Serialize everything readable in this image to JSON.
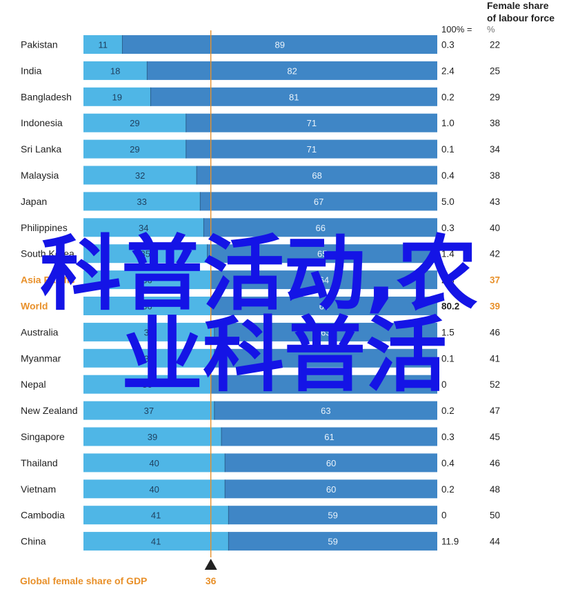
{
  "header": {
    "title_line1": "Female share",
    "title_line2": "of labour force",
    "hundred_label": "100% =",
    "pct_label": "%"
  },
  "footer": {
    "label": "Global female share of GDP",
    "value": "36"
  },
  "watermark": {
    "line1": "科普活动,农",
    "line2": "业科普活"
  },
  "colors": {
    "female_bar": "#4fb6e6",
    "male_bar": "#3f86c6",
    "highlight": "#e8902a",
    "marker_line": "#e8902a",
    "watermark": "#1414e6"
  },
  "chart_data": {
    "type": "bar",
    "orientation": "horizontal-stacked-100",
    "reference_line": 36,
    "categories": [
      "Pakistan",
      "India",
      "Bangladesh",
      "Indonesia",
      "Sri Lanka",
      "Malaysia",
      "Japan",
      "Philippines",
      "South Korea",
      "Asia Pacific",
      "World",
      "Australia",
      "Myanmar",
      "Nepal",
      "New Zealand",
      "Singapore",
      "Thailand",
      "Vietnam",
      "Cambodia",
      "China"
    ],
    "labels": [
      "Pakistan",
      "India",
      "Bangladesh",
      "Indonesia",
      "Sri Lanka",
      "Malaysia",
      "Japan",
      "Philippines",
      "South Korea",
      "Asia Pacific",
      "World",
      "Australia",
      "Myanmar",
      "Nepal",
      "New Zealand",
      "Singapore",
      "Thailand",
      "Vietnam",
      "Cambodia",
      "China"
    ],
    "highlight_rows": [
      "Asia Pacific",
      "World"
    ],
    "series": [
      {
        "values": [
          11,
          18,
          19,
          29,
          29,
          32,
          33,
          34,
          35,
          36,
          36,
          37,
          37,
          36,
          37,
          39,
          40,
          40,
          41,
          41
        ]
      },
      {
        "values": [
          89,
          82,
          81,
          71,
          71,
          68,
          67,
          66,
          65,
          64,
          64,
          63,
          63,
          64,
          63,
          61,
          60,
          60,
          59,
          59
        ]
      }
    ],
    "shown_female": [
      "11",
      "18",
      "19",
      "29",
      "29",
      "32",
      "33",
      "34",
      "35",
      "36",
      "36",
      "37",
      "37",
      "36",
      "37",
      "39",
      "40",
      "40",
      "41",
      "41"
    ],
    "shown_male": [
      "89",
      "82",
      "81",
      "71",
      "71",
      "68",
      "67",
      "66",
      "65",
      "64",
      "64",
      "63",
      "63",
      "64",
      "63",
      "61",
      "60",
      "60",
      "59",
      "59"
    ],
    "total_column": [
      "0.3",
      "2.4",
      "0.2",
      "1.0",
      "0.1",
      "0.4",
      "5.0",
      "0.3",
      "1.4",
      "2.8",
      "80.2",
      "1.5",
      "0.1",
      "0",
      "0.2",
      "0.3",
      "0.4",
      "0.2",
      "0",
      "11.9"
    ],
    "female_share_labour_force": [
      "22",
      "25",
      "29",
      "38",
      "34",
      "38",
      "43",
      "40",
      "42",
      "37",
      "39",
      "46",
      "41",
      "52",
      "47",
      "45",
      "46",
      "48",
      "50",
      "44"
    ],
    "xlim": [
      0,
      100
    ]
  }
}
